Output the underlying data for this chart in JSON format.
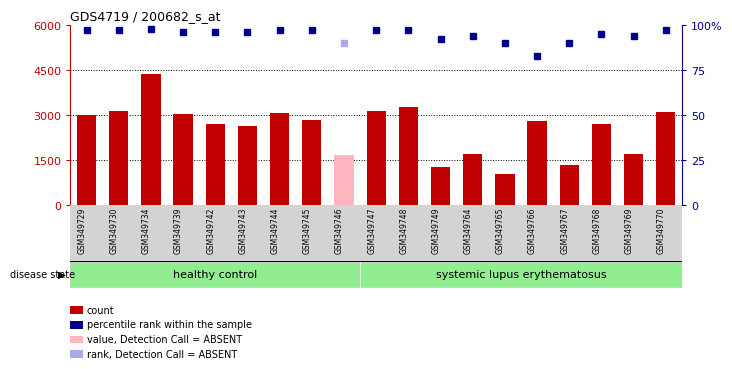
{
  "title": "GDS4719 / 200682_s_at",
  "samples": [
    "GSM349729",
    "GSM349730",
    "GSM349734",
    "GSM349739",
    "GSM349742",
    "GSM349743",
    "GSM349744",
    "GSM349745",
    "GSM349746",
    "GSM349747",
    "GSM349748",
    "GSM349749",
    "GSM349764",
    "GSM349765",
    "GSM349766",
    "GSM349767",
    "GSM349768",
    "GSM349769",
    "GSM349770"
  ],
  "counts": [
    3020,
    3150,
    4380,
    3030,
    2700,
    2650,
    3060,
    2850,
    1680,
    3150,
    3280,
    1280,
    1700,
    1050,
    2800,
    1350,
    2700,
    1700,
    3120
  ],
  "absent_index": 8,
  "percentile_ranks": [
    97,
    97,
    98,
    96,
    96,
    96,
    97,
    97,
    90,
    97,
    97,
    92,
    94,
    90,
    83,
    90,
    95,
    94,
    97
  ],
  "healthy_control_count": 9,
  "disease_groups": [
    "healthy control",
    "systemic lupus erythematosus"
  ],
  "bar_color_normal": "#c00000",
  "bar_color_absent": "#ffb6c1",
  "dot_color_normal": "#00008b",
  "dot_color_absent": "#aaaaee",
  "ylim_left": [
    0,
    6000
  ],
  "ylim_right": [
    0,
    100
  ],
  "yticks_left": [
    0,
    1500,
    3000,
    4500,
    6000
  ],
  "ytick_labels_left": [
    "0",
    "1500",
    "3000",
    "4500",
    "6000"
  ],
  "yticks_right": [
    0,
    25,
    50,
    75,
    100
  ],
  "ytick_labels_right": [
    "0",
    "25",
    "50",
    "75",
    "100%"
  ],
  "grid_lines": [
    1500,
    3000,
    4500
  ],
  "left_axis_color": "#c00000",
  "right_axis_color": "#00008b",
  "background_xlabel": "#d3d3d3",
  "background_group": "#90ee90",
  "legend_items": [
    {
      "label": "count",
      "color": "#c00000"
    },
    {
      "label": "percentile rank within the sample",
      "color": "#00008b"
    },
    {
      "label": "value, Detection Call = ABSENT",
      "color": "#ffb6c1"
    },
    {
      "label": "rank, Detection Call = ABSENT",
      "color": "#aaaaee"
    }
  ]
}
